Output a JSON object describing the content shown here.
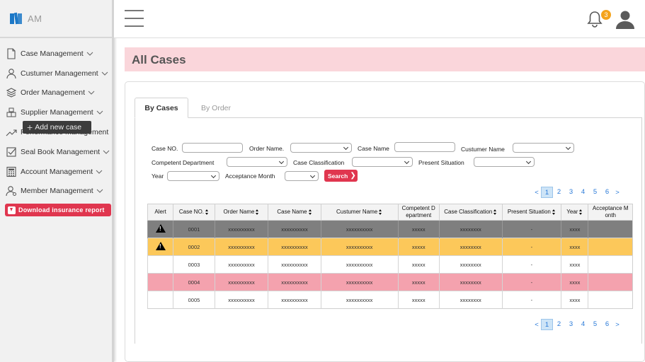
{
  "app": {
    "logo_text": "AM"
  },
  "sidebar": {
    "items": [
      {
        "label": "Case Management",
        "icon": "document-icon",
        "has_chevron": true
      },
      {
        "label": "Custumer Management",
        "icon": "person-icon",
        "has_chevron": true
      },
      {
        "label": "Order Management",
        "icon": "layers-icon",
        "has_chevron": true
      },
      {
        "label": "Supplier Management",
        "icon": "boxes-icon",
        "has_chevron": true
      },
      {
        "label": "Performance Management",
        "icon": "trend-icon",
        "has_chevron": false
      },
      {
        "label": "Seal Book Management",
        "icon": "checkbox-icon",
        "has_chevron": true
      },
      {
        "label": "Account Management",
        "icon": "calculator-icon",
        "has_chevron": true
      },
      {
        "label": "Member Management",
        "icon": "member-icon",
        "has_chevron": true
      }
    ],
    "download_label": "Download insurance report"
  },
  "header": {
    "notification_count": "3"
  },
  "page": {
    "title": "All Cases"
  },
  "tabs": [
    {
      "label": "By Cases",
      "active": true
    },
    {
      "label": "By Order",
      "active": false
    }
  ],
  "toolbar": {
    "add_label": "Add new case"
  },
  "filters": {
    "case_no": "Case NO.",
    "order_name": "Order Name.",
    "case_name": "Case Name",
    "custumer_name": "Custumer Name",
    "competent_department": "Competent Department",
    "case_classification": "Case Classification",
    "present_situation": "Present Situation",
    "year": "Year",
    "acceptance_month": "Acceptance Month",
    "search_label": "Search"
  },
  "pagination": {
    "prev": "<",
    "next": ">",
    "pages": [
      "1",
      "2",
      "3",
      "4",
      "5",
      "6"
    ],
    "current": "1"
  },
  "table": {
    "headers": {
      "alert": "Alert",
      "case_no": "Case NO.",
      "order_name": "Order Name",
      "case_name": "Case Name",
      "custumer_name": "Custumer Name",
      "competent_department": "Competent D epartment",
      "case_classification": "Case Classification",
      "present_situation": "Present Situation",
      "year": "Year",
      "acceptance_month": "Acceptance M onth"
    },
    "rows": [
      {
        "alert": true,
        "status_color": "#7f7f7f",
        "case_no": "0001",
        "order_name": "xxxxxxxxxx",
        "case_name": "xxxxxxxxxx",
        "custumer_name": "xxxxxxxxxx",
        "competent_department": "xxxxx",
        "case_classification": "xxxxxxxx",
        "present_situation": "-",
        "year": "xxxx",
        "acceptance_month": ""
      },
      {
        "alert": true,
        "status_color": "#fcc85a",
        "case_no": "0002",
        "order_name": "xxxxxxxxxx",
        "case_name": "xxxxxxxxxx",
        "custumer_name": "xxxxxxxxxx",
        "competent_department": "xxxxx",
        "case_classification": "xxxxxxxx",
        "present_situation": "-",
        "year": "xxxx",
        "acceptance_month": ""
      },
      {
        "alert": false,
        "status_color": "#ffffff",
        "case_no": "0003",
        "order_name": "xxxxxxxxxx",
        "case_name": "xxxxxxxxxx",
        "custumer_name": "xxxxxxxxxx",
        "competent_department": "xxxxx",
        "case_classification": "xxxxxxxx",
        "present_situation": "-",
        "year": "xxxx",
        "acceptance_month": ""
      },
      {
        "alert": false,
        "status_color": "#f4a2ae",
        "case_no": "0004",
        "order_name": "xxxxxxxxxx",
        "case_name": "xxxxxxxxxx",
        "custumer_name": "xxxxxxxxxx",
        "competent_department": "xxxxx",
        "case_classification": "xxxxxxxx",
        "present_situation": "-",
        "year": "xxxx",
        "acceptance_month": ""
      },
      {
        "alert": false,
        "status_color": "#ffffff",
        "case_no": "0005",
        "order_name": "xxxxxxxxxx",
        "case_name": "xxxxxxxxxx",
        "custumer_name": "xxxxxxxxxx",
        "competent_department": "xxxxx",
        "case_classification": "xxxxxxxx",
        "present_situation": "-",
        "year": "xxxx",
        "acceptance_month": ""
      }
    ]
  }
}
